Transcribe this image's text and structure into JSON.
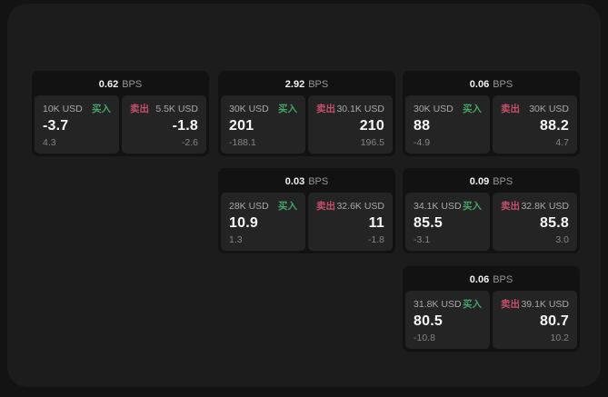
{
  "labels": {
    "bps_unit": "BPS",
    "buy": "买入",
    "sell": "卖出"
  },
  "colors": {
    "buy_green": "#45a368",
    "sell_red": "#c4506a",
    "panel_bg": "#1c1c1d",
    "card_bg": "#121213",
    "pane_bg": "#242425"
  },
  "cards": [
    {
      "col": 1,
      "row": 1,
      "bps": "0.62",
      "buy": {
        "amount": "10K USD",
        "value": "-3.7",
        "delta": "4.3"
      },
      "sell": {
        "amount": "5.5K USD",
        "value": "-1.8",
        "delta": "-2.6"
      }
    },
    {
      "col": 2,
      "row": 1,
      "bps": "2.92",
      "buy": {
        "amount": "30K USD",
        "value": "201",
        "delta": "-188.1"
      },
      "sell": {
        "amount": "30.1K USD",
        "value": "210",
        "delta": "196.5"
      }
    },
    {
      "col": 3,
      "row": 1,
      "bps": "0.06",
      "buy": {
        "amount": "30K USD",
        "value": "88",
        "delta": "-4.9"
      },
      "sell": {
        "amount": "30K USD",
        "value": "88.2",
        "delta": "4.7"
      }
    },
    {
      "col": 2,
      "row": 2,
      "bps": "0.03",
      "buy": {
        "amount": "28K USD",
        "value": "10.9",
        "delta": "1.3"
      },
      "sell": {
        "amount": "32.6K USD",
        "value": "11",
        "delta": "-1.8"
      }
    },
    {
      "col": 3,
      "row": 2,
      "bps": "0.09",
      "buy": {
        "amount": "34.1K USD",
        "value": "85.5",
        "delta": "-3.1"
      },
      "sell": {
        "amount": "32.8K USD",
        "value": "85.8",
        "delta": "3.0"
      }
    },
    {
      "col": 3,
      "row": 3,
      "bps": "0.06",
      "buy": {
        "amount": "31.8K USD",
        "value": "80.5",
        "delta": "-10.8"
      },
      "sell": {
        "amount": "39.1K USD",
        "value": "80.7",
        "delta": "10.2"
      }
    }
  ]
}
